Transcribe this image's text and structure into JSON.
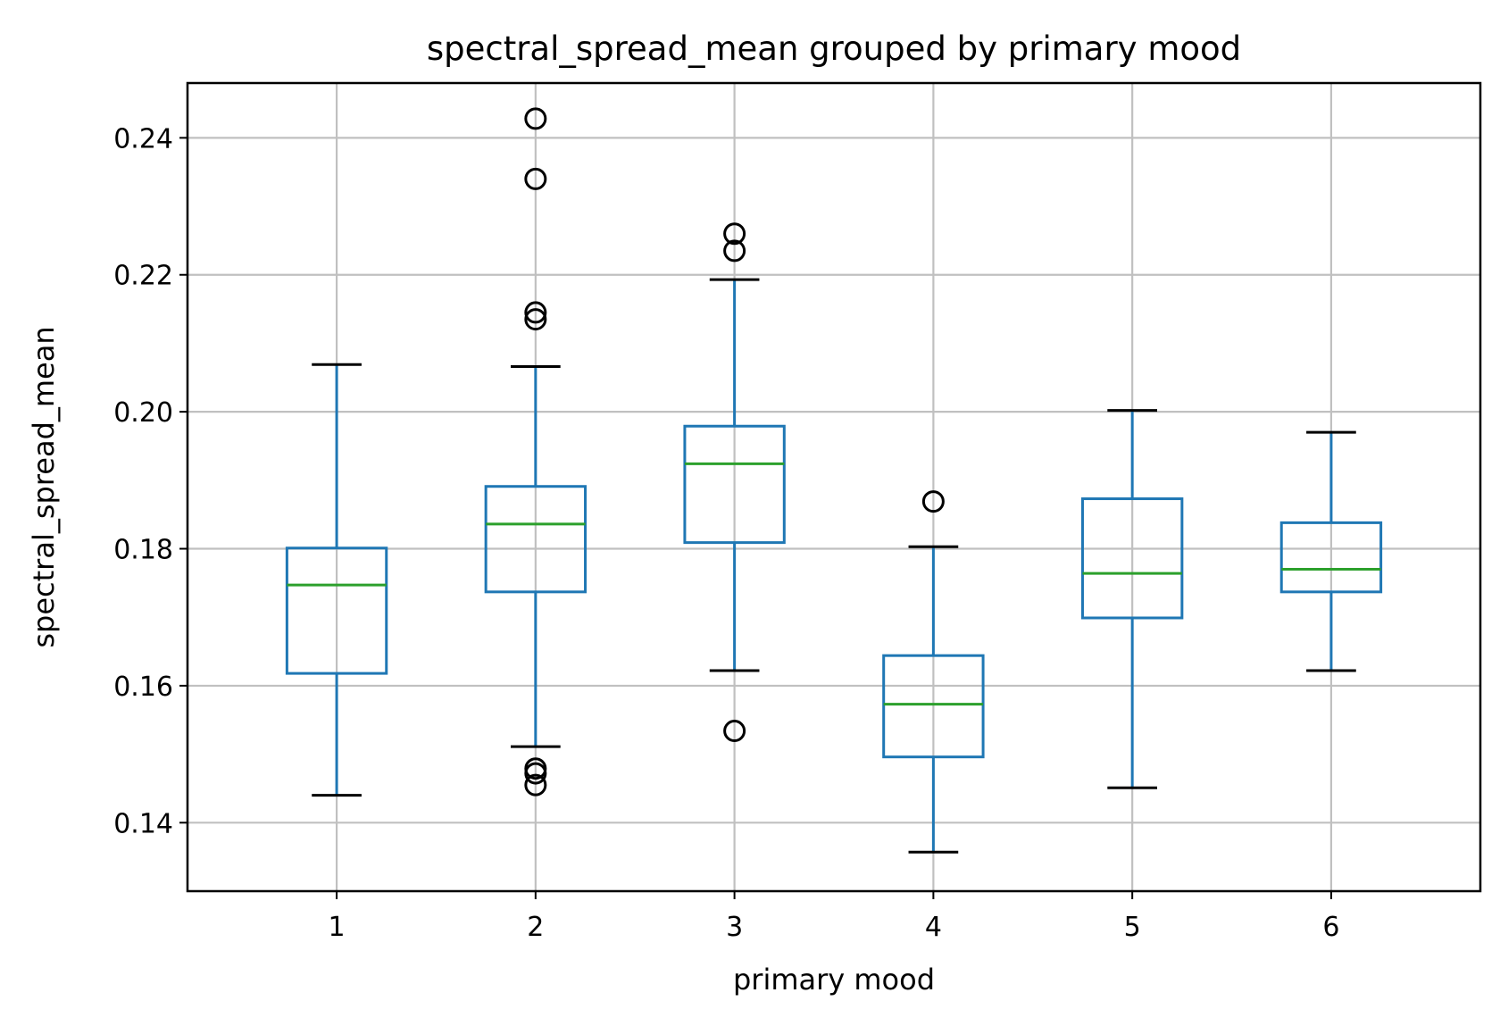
{
  "chart_data": {
    "type": "box",
    "title": "spectral_spread_mean grouped by primary mood",
    "xlabel": "primary mood",
    "ylabel": "spectral_spread_mean",
    "ylim": [
      0.13,
      0.248
    ],
    "yticks": [
      0.14,
      0.16,
      0.18,
      0.2,
      0.22,
      0.24
    ],
    "ytick_labels": [
      "0.14",
      "0.16",
      "0.18",
      "0.20",
      "0.22",
      "0.24"
    ],
    "grid": true,
    "colors": {
      "box": "#1f77b4",
      "median": "#2ca02c",
      "whisker_cap": "#000000",
      "grid": "#c0c0c0"
    },
    "categories": [
      "1",
      "2",
      "3",
      "4",
      "5",
      "6"
    ],
    "boxes": [
      {
        "category": "1",
        "whisker_low": 0.144,
        "q1": 0.1618,
        "median": 0.1747,
        "q3": 0.1801,
        "whisker_high": 0.2069,
        "outliers": []
      },
      {
        "category": "2",
        "whisker_low": 0.1511,
        "q1": 0.1737,
        "median": 0.1836,
        "q3": 0.1891,
        "whisker_high": 0.2066,
        "outliers": [
          0.2428,
          0.234,
          0.2145,
          0.2135,
          0.1479,
          0.1472,
          0.1455
        ]
      },
      {
        "category": "3",
        "whisker_low": 0.1622,
        "q1": 0.1809,
        "median": 0.1924,
        "q3": 0.1979,
        "whisker_high": 0.2193,
        "outliers": [
          0.226,
          0.2235,
          0.1534
        ]
      },
      {
        "category": "4",
        "whisker_low": 0.1357,
        "q1": 0.1496,
        "median": 0.1573,
        "q3": 0.1644,
        "whisker_high": 0.1803,
        "outliers": [
          0.1869
        ]
      },
      {
        "category": "5",
        "whisker_low": 0.1451,
        "q1": 0.1699,
        "median": 0.1764,
        "q3": 0.1873,
        "whisker_high": 0.2002,
        "outliers": []
      },
      {
        "category": "6",
        "whisker_low": 0.1622,
        "q1": 0.1737,
        "median": 0.177,
        "q3": 0.1838,
        "whisker_high": 0.197,
        "outliers": []
      }
    ]
  }
}
